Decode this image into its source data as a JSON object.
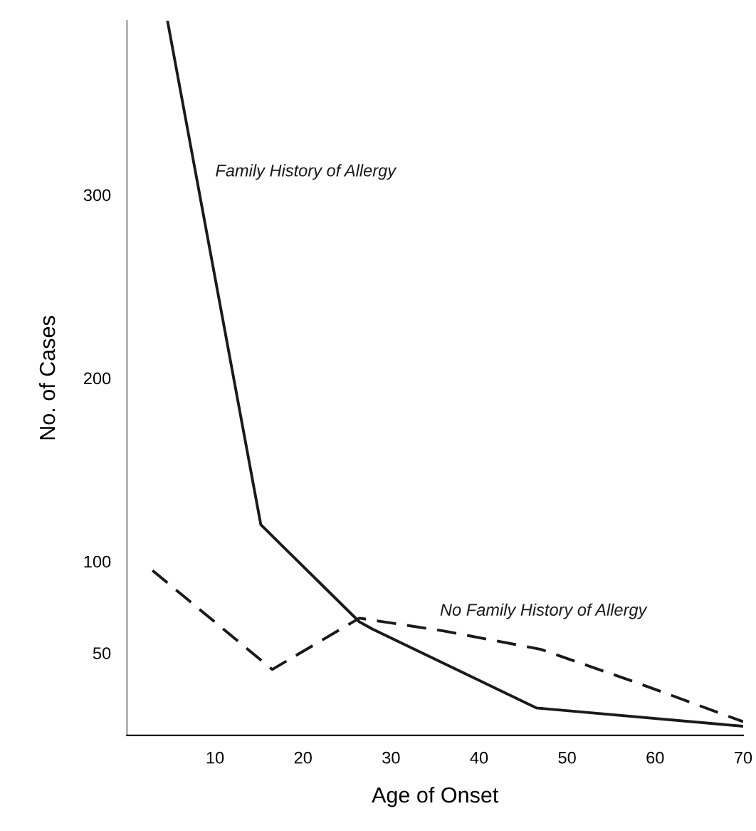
{
  "chart_data": {
    "type": "line",
    "xlabel": "Age of Onset",
    "ylabel": "No. of Cases",
    "xlim": [
      0,
      70
    ],
    "ylim": [
      5,
      395
    ],
    "xticks": [
      10,
      20,
      30,
      40,
      50,
      60,
      70
    ],
    "yticks": [
      50,
      100,
      200,
      300
    ],
    "grid": false,
    "legend": false,
    "marker": "none",
    "series": [
      {
        "name": "Family History of Allergy",
        "color": "#1a1a1a",
        "line_style": "solid",
        "x": [
          4.6,
          15.2,
          26.4,
          27.9,
          46.5,
          70
        ],
        "values": [
          395,
          120,
          67,
          63,
          20,
          10
        ]
      },
      {
        "name": "No Family History of Allergy",
        "color": "#1a1a1a",
        "line_style": "dashed",
        "x": [
          2.9,
          16.5,
          26.4,
          36,
          47,
          57.8,
          70
        ],
        "values": [
          95,
          41,
          69,
          62,
          52,
          34,
          12.5
        ]
      }
    ]
  }
}
